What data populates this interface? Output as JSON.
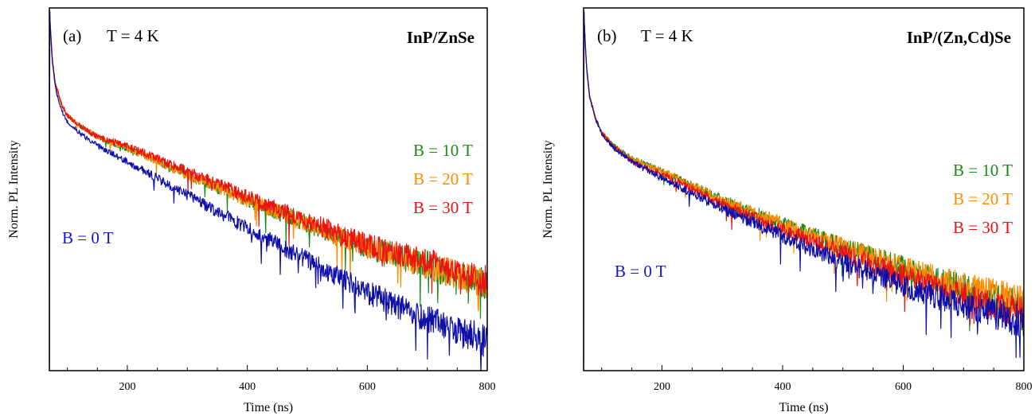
{
  "chart_data": [
    {
      "type": "line",
      "panel_label": "(a)",
      "temperature_label": "T = 4 K",
      "sample_title": "InP/ZnSe",
      "xlabel": "Time (ns)",
      "ylabel": "Norm. PL Intensity",
      "xlim": [
        70,
        800
      ],
      "x_ticks": [
        200,
        400,
        600,
        800
      ],
      "y_scale": "log",
      "y_ticks_labeled": false,
      "legend_placement": "right, inside plot",
      "series": [
        {
          "name": "B = 10 T",
          "color": "#1a8a1a",
          "x": [
            70,
            75,
            80,
            90,
            100,
            120,
            150,
            200,
            300,
            400,
            500,
            600,
            700,
            800
          ],
          "y": [
            1.0,
            0.5,
            0.36,
            0.27,
            0.23,
            0.2,
            0.17,
            0.145,
            0.1,
            0.07,
            0.05,
            0.036,
            0.028,
            0.021
          ]
        },
        {
          "name": "B = 20 T",
          "color": "#ff8c00",
          "x": [
            70,
            75,
            80,
            90,
            100,
            120,
            150,
            200,
            300,
            400,
            500,
            600,
            700,
            800
          ],
          "y": [
            1.0,
            0.5,
            0.36,
            0.27,
            0.23,
            0.2,
            0.17,
            0.145,
            0.1,
            0.07,
            0.05,
            0.036,
            0.028,
            0.021
          ]
        },
        {
          "name": "B = 30 T",
          "color": "#ee1111",
          "x": [
            70,
            75,
            80,
            90,
            100,
            120,
            150,
            200,
            300,
            400,
            500,
            600,
            700,
            800
          ],
          "y": [
            1.0,
            0.5,
            0.36,
            0.27,
            0.23,
            0.2,
            0.17,
            0.15,
            0.105,
            0.073,
            0.052,
            0.037,
            0.029,
            0.022
          ]
        },
        {
          "name": "B = 0 T",
          "color": "#0f0fa8",
          "x": [
            70,
            75,
            80,
            90,
            100,
            120,
            150,
            200,
            300,
            400,
            500,
            600,
            700,
            800
          ],
          "y": [
            1.0,
            0.48,
            0.34,
            0.25,
            0.21,
            0.18,
            0.15,
            0.12,
            0.075,
            0.047,
            0.03,
            0.019,
            0.013,
            0.0095
          ]
        }
      ]
    },
    {
      "type": "line",
      "panel_label": "(b)",
      "temperature_label": "T = 4 K",
      "sample_title": "InP/(Zn,Cd)Se",
      "xlabel": "Time (ns)",
      "ylabel": "Norm. PL Intensity",
      "xlim": [
        70,
        800
      ],
      "x_ticks": [
        200,
        400,
        600,
        800
      ],
      "y_scale": "log",
      "y_ticks_labeled": false,
      "legend_placement": "right, inside plot",
      "series": [
        {
          "name": "B = 10 T",
          "color": "#1a8a1a",
          "x": [
            70,
            75,
            80,
            90,
            100,
            120,
            150,
            200,
            300,
            400,
            500,
            600,
            700,
            800
          ],
          "y": [
            1.0,
            0.45,
            0.3,
            0.22,
            0.18,
            0.15,
            0.125,
            0.105,
            0.07,
            0.05,
            0.036,
            0.027,
            0.02,
            0.0155
          ]
        },
        {
          "name": "B = 20 T",
          "color": "#ff8c00",
          "x": [
            70,
            75,
            80,
            90,
            100,
            120,
            150,
            200,
            300,
            400,
            500,
            600,
            700,
            800
          ],
          "y": [
            1.0,
            0.45,
            0.3,
            0.22,
            0.18,
            0.15,
            0.125,
            0.105,
            0.07,
            0.05,
            0.036,
            0.027,
            0.021,
            0.0165
          ]
        },
        {
          "name": "B = 30 T",
          "color": "#ee1111",
          "x": [
            70,
            75,
            80,
            90,
            100,
            120,
            150,
            200,
            300,
            400,
            500,
            600,
            700,
            800
          ],
          "y": [
            1.0,
            0.45,
            0.3,
            0.22,
            0.18,
            0.15,
            0.12,
            0.1,
            0.066,
            0.046,
            0.033,
            0.024,
            0.018,
            0.014
          ]
        },
        {
          "name": "B = 0 T",
          "color": "#0f0fa8",
          "x": [
            70,
            75,
            80,
            90,
            100,
            120,
            150,
            200,
            300,
            400,
            500,
            600,
            700,
            800
          ],
          "y": [
            1.0,
            0.45,
            0.3,
            0.22,
            0.18,
            0.145,
            0.12,
            0.095,
            0.062,
            0.042,
            0.029,
            0.021,
            0.016,
            0.0125
          ]
        }
      ]
    }
  ]
}
